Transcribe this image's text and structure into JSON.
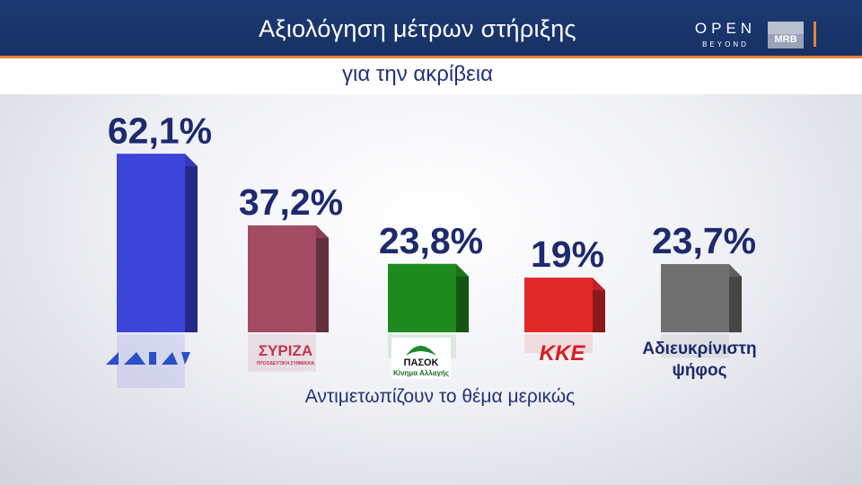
{
  "header": {
    "title": "Αξιολόγηση  μέτρων στήριξης",
    "subtitle": "για την ακρίβεια"
  },
  "brand": {
    "open_main": "OPEN",
    "open_sub": "BEYOND",
    "mrb": "MRB"
  },
  "colors": {
    "header_bg": "#1d3a74",
    "accent": "#e8833a",
    "value_text": "#1d2a6e"
  },
  "chart_data": {
    "type": "bar",
    "title": "Αξιολόγηση  μέτρων στήριξης",
    "subtitle": "για την ακρίβεια",
    "categories": [
      "ΝΔ",
      "ΣΥΡΙΖΑ",
      "ΠΑΣΟΚ",
      "ΚΚΕ",
      "Αδιευκρίνιστη ψήφος"
    ],
    "values": [
      62.1,
      37.2,
      23.8,
      19,
      23.7
    ],
    "value_labels": [
      "62,1%",
      "37,2%",
      "23,8%",
      "19%",
      "23,7%"
    ],
    "unit": "%",
    "annotation": "Αντιμετωπίζουν το θέμα μερικώς",
    "colors": [
      "#3d44d9",
      "#a24b62",
      "#1e8a1e",
      "#e02a2a",
      "#707070"
    ],
    "logo_texts": {
      "syriza": "ΣΥΡΙΖΑ",
      "syriza_sub": "ΠΡΟΟΔΕΥΤΙΚΗ ΣΥΜΜΑΧΙΑ",
      "pasok": "ΠΑΣΟΚ",
      "pasok_sub": "Κίνημα Αλλαγής",
      "kke": "ΚΚΕ",
      "undecided_line1": "Αδιευκρίνιστη",
      "undecided_line2": "ψήφος"
    },
    "grid": false,
    "legend": "none"
  }
}
